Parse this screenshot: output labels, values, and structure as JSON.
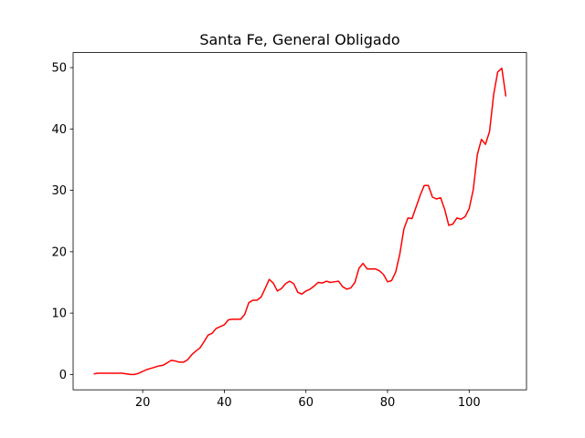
{
  "chart_data": {
    "type": "line",
    "title": "Santa Fe, General Obligado",
    "x": [
      8,
      9,
      10,
      11,
      12,
      13,
      14,
      15,
      16,
      17,
      18,
      19,
      20,
      21,
      22,
      23,
      24,
      25,
      26,
      27,
      28,
      29,
      30,
      31,
      32,
      33,
      34,
      35,
      36,
      37,
      38,
      39,
      40,
      41,
      42,
      43,
      44,
      45,
      46,
      47,
      48,
      49,
      50,
      51,
      52,
      53,
      54,
      55,
      56,
      57,
      58,
      59,
      60,
      61,
      62,
      63,
      64,
      65,
      66,
      67,
      68,
      69,
      70,
      71,
      72,
      73,
      74,
      75,
      76,
      77,
      78,
      79,
      80,
      81,
      82,
      83,
      84,
      85,
      86,
      87,
      88,
      89,
      90,
      91,
      92,
      93,
      94,
      95,
      96,
      97,
      98,
      99,
      100,
      101,
      102,
      103,
      104,
      105,
      106,
      107,
      108,
      109
    ],
    "values": [
      0.1,
      0.2,
      0.2,
      0.2,
      0.2,
      0.2,
      0.2,
      0.2,
      0.1,
      0.0,
      0.0,
      0.2,
      0.5,
      0.8,
      1.0,
      1.2,
      1.4,
      1.5,
      1.9,
      2.3,
      2.2,
      2.0,
      2.0,
      2.4,
      3.2,
      3.8,
      4.3,
      5.3,
      6.4,
      6.7,
      7.5,
      7.8,
      8.1,
      8.9,
      9.0,
      9.0,
      9.0,
      9.8,
      11.7,
      12.1,
      12.1,
      12.6,
      14.0,
      15.5,
      14.9,
      13.6,
      14.0,
      14.8,
      15.2,
      14.8,
      13.4,
      13.1,
      13.6,
      13.9,
      14.4,
      15.0,
      14.9,
      15.2,
      15.0,
      15.1,
      15.2,
      14.3,
      13.9,
      14.1,
      15.0,
      17.3,
      18.1,
      17.2,
      17.2,
      17.2,
      16.9,
      16.3,
      15.1,
      15.3,
      16.7,
      19.6,
      23.7,
      25.5,
      25.4,
      27.3,
      29.2,
      30.8,
      30.8,
      28.9,
      28.6,
      28.8,
      26.9,
      24.3,
      24.5,
      25.5,
      25.3,
      25.7,
      27.0,
      30.1,
      35.8,
      38.3,
      37.5,
      39.6,
      45.6,
      49.3,
      49.9,
      45.3
    ],
    "color": "#ff0000",
    "xlim": [
      2.95,
      114.05
    ],
    "ylim": [
      -2.5,
      52.45
    ],
    "xticks": [
      20,
      40,
      60,
      80,
      100
    ],
    "yticks": [
      0,
      10,
      20,
      30,
      40,
      50
    ]
  }
}
